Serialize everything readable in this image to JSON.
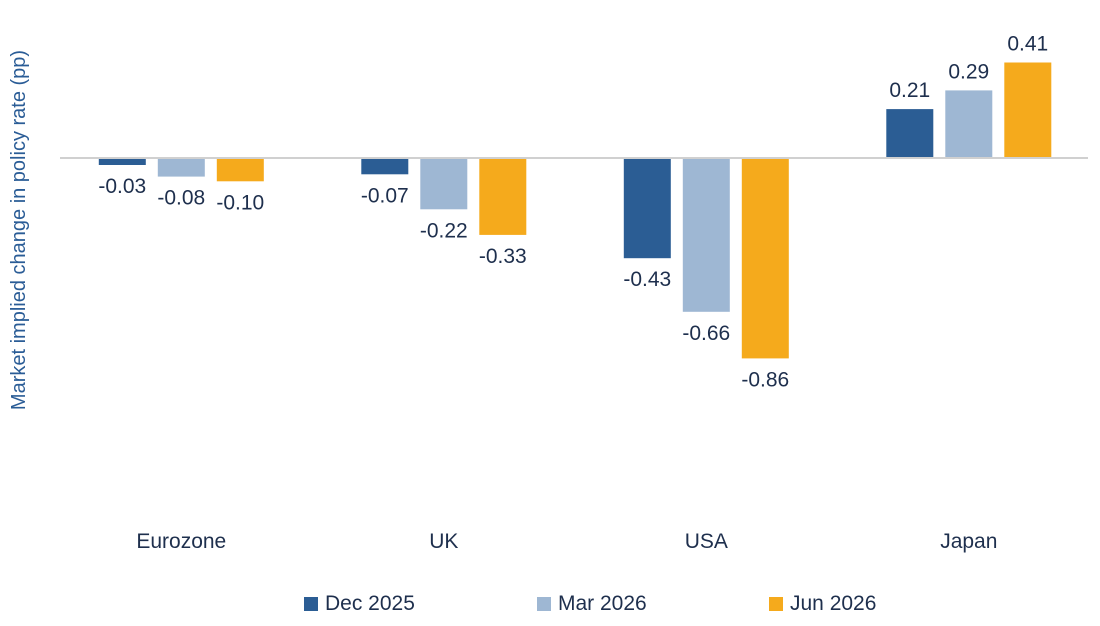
{
  "chart_data": {
    "type": "bar",
    "title": "",
    "xlabel": "",
    "ylabel": "Market implied change in policy rate (pp)",
    "categories": [
      "Eurozone",
      "UK",
      "USA",
      "Japan"
    ],
    "series": [
      {
        "name": "Dec 2025",
        "color": "#2b5d94",
        "values": [
          -0.03,
          -0.07,
          -0.43,
          0.21
        ]
      },
      {
        "name": "Mar 2026",
        "color": "#9eb7d3",
        "values": [
          -0.08,
          -0.22,
          -0.66,
          0.29
        ]
      },
      {
        "name": "Jun 2026",
        "color": "#f5aa1c",
        "values": [
          -0.1,
          -0.33,
          -0.86,
          0.41
        ]
      }
    ],
    "ylim": [
      -1.4,
      0.7
    ],
    "grid": false,
    "legend": "bottom",
    "data_labels": true
  }
}
